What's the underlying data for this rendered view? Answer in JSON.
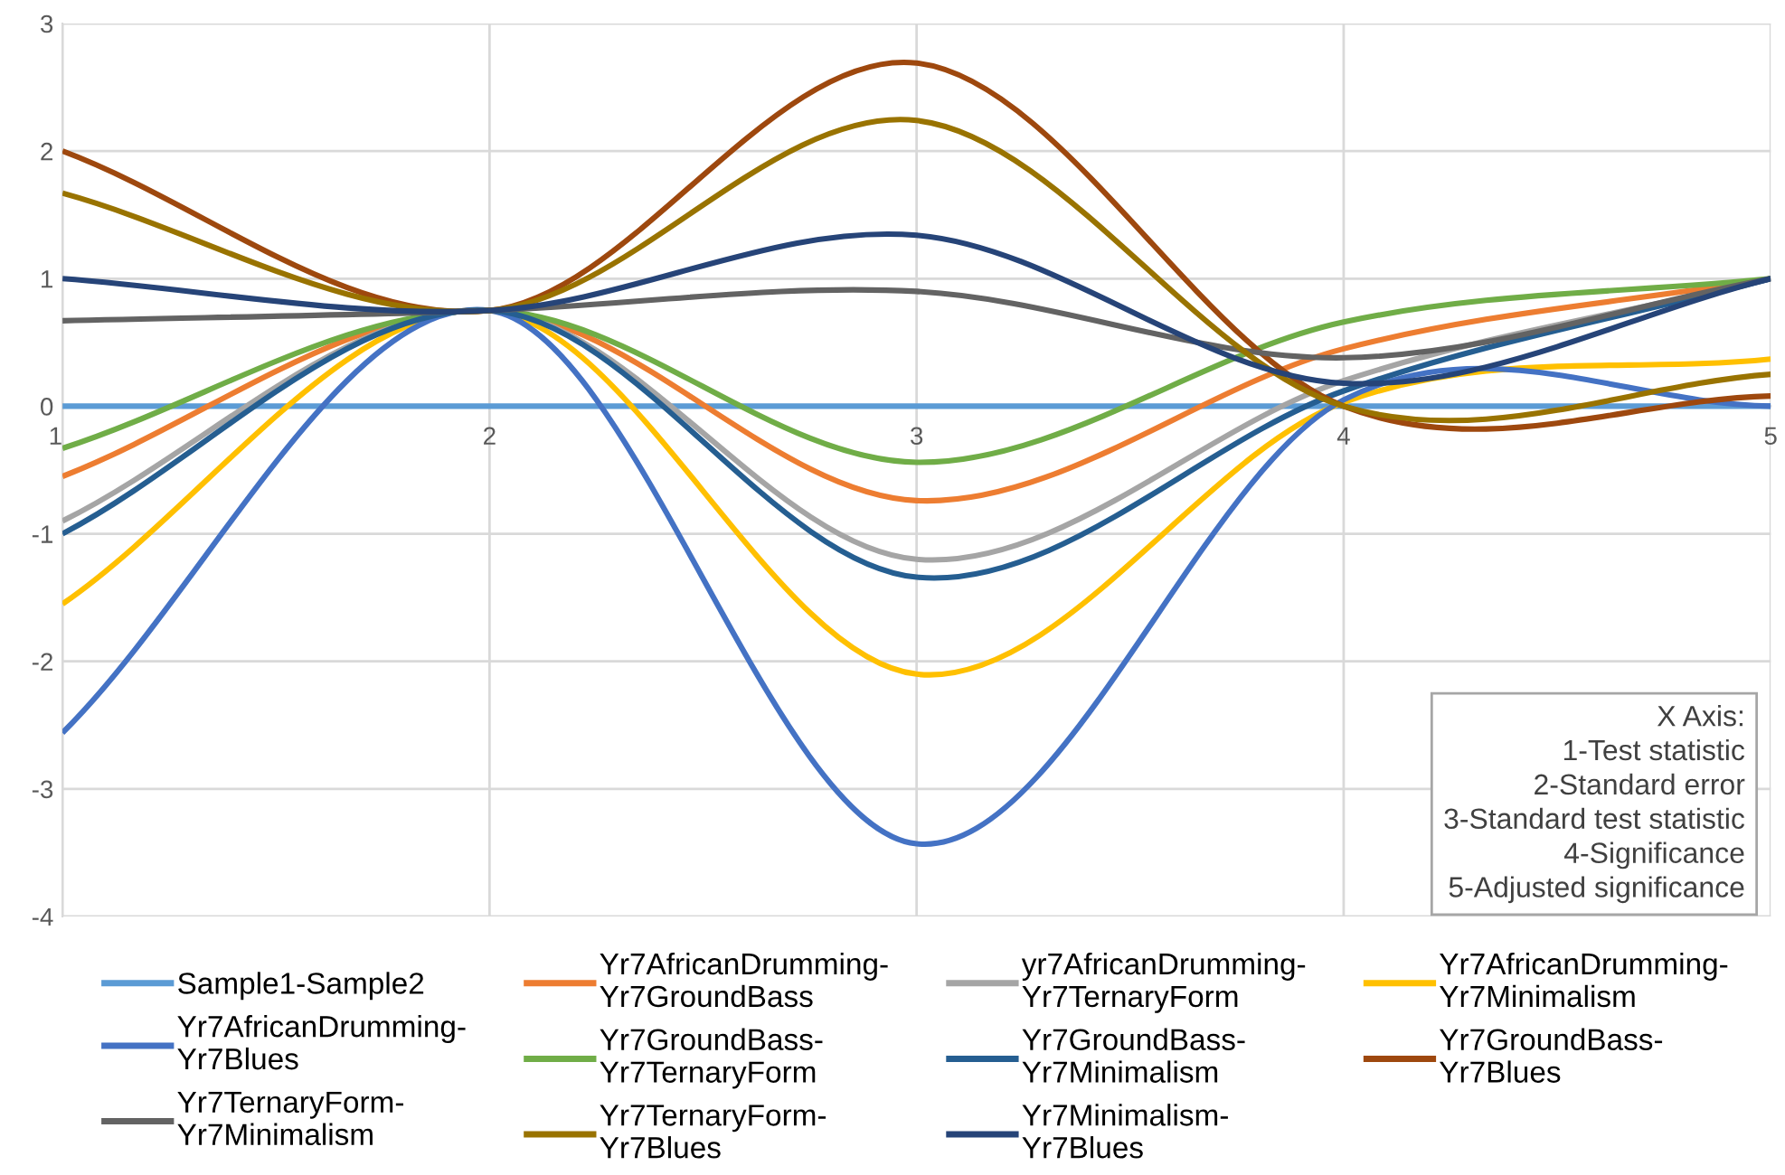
{
  "chart_data": {
    "type": "line",
    "x": [
      1,
      2,
      3,
      4,
      5
    ],
    "xlim": [
      1,
      5
    ],
    "xticks": [
      1,
      2,
      3,
      4,
      5
    ],
    "ylim": [
      -4,
      3
    ],
    "yticks": [
      -4,
      -3,
      -2,
      -1,
      0,
      1,
      2,
      3
    ],
    "grid": true,
    "legend": "bottom",
    "marker": "none",
    "line_style": "solid",
    "annotations": [
      "X Axis:\n1-Test statistic\n2-Standard error\n3-Standard test statistic\n4-Significance\n5-Adjusted significance"
    ],
    "series": [
      {
        "name": "Sample1-Sample2",
        "color": "#5b9bd5",
        "values": [
          0,
          0,
          0,
          0,
          0
        ]
      },
      {
        "name": "Yr7AfricanDrumming-\nYr7GroundBass",
        "color": "#ed7d31",
        "values": [
          -0.55,
          0.75,
          -0.74,
          0.45,
          1.0
        ]
      },
      {
        "name": "yr7AfricanDrumming-\nYr7TernaryForm",
        "color": "#a5a5a5",
        "values": [
          -0.9,
          0.75,
          -1.2,
          0.2,
          1.0
        ]
      },
      {
        "name": "Yr7AfricanDrumming-\nYr7Minimalism",
        "color": "#ffc000",
        "values": [
          -1.55,
          0.75,
          -2.1,
          0.03,
          0.37
        ]
      },
      {
        "name": "Yr7AfricanDrumming-\nYr7Blues",
        "color": "#4472c4",
        "values": [
          -2.56,
          0.75,
          -3.43,
          0.05,
          0.0
        ]
      },
      {
        "name": "Yr7GroundBass-\nYr7TernaryForm",
        "color": "#70ad47",
        "values": [
          -0.33,
          0.75,
          -0.44,
          0.66,
          1.0
        ]
      },
      {
        "name": "Yr7GroundBass-\nYr7Minimalism",
        "color": "#255e91",
        "values": [
          -1.0,
          0.75,
          -1.34,
          0.12,
          1.0
        ]
      },
      {
        "name": "Yr7GroundBass-\nYr7Blues",
        "color": "#9e480e",
        "values": [
          2.0,
          0.75,
          2.69,
          0.0,
          0.08
        ]
      },
      {
        "name": "Yr7TernaryForm-\nYr7Minimalism",
        "color": "#636363",
        "values": [
          0.67,
          0.75,
          0.9,
          0.38,
          1.0
        ]
      },
      {
        "name": "Yr7TernaryForm-\nYr7Blues",
        "color": "#997300",
        "values": [
          1.67,
          0.75,
          2.24,
          0.0,
          0.25
        ]
      },
      {
        "name": "Yr7Minimalism-\nYr7Blues",
        "color": "#264478",
        "values": [
          1.0,
          0.75,
          1.34,
          0.18,
          1.0
        ]
      }
    ]
  }
}
